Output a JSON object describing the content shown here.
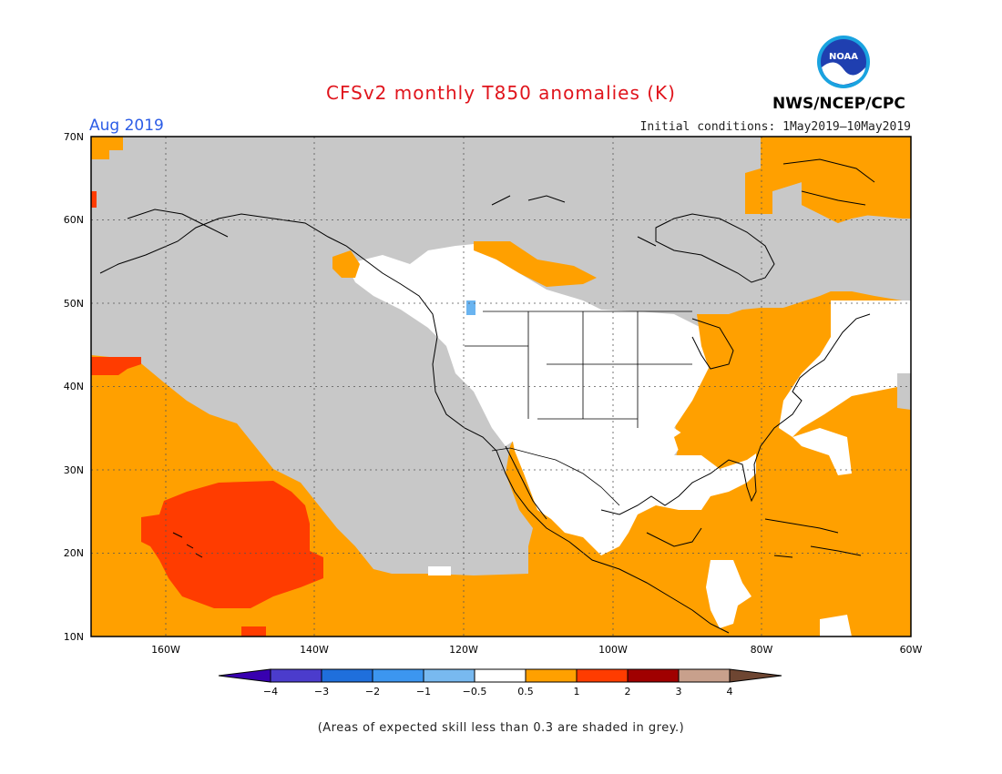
{
  "header": {
    "title": "CFSv2 monthly T850 anomalies (K)",
    "month": "Aug 2019",
    "initial_conditions": "Initial conditions: 1May2019–10May2019",
    "organization": "NWS/NCEP/CPC",
    "logo_text": "NOAA"
  },
  "map": {
    "projection": "lat-lon",
    "lon_range": [
      -170,
      -60
    ],
    "lat_range": [
      10,
      70
    ],
    "lat_labels": [
      "70N",
      "60N",
      "50N",
      "40N",
      "30N",
      "20N",
      "10N"
    ],
    "lon_labels": [
      "160W",
      "140W",
      "120W",
      "100W",
      "80W",
      "60W"
    ],
    "gridlines": "dotted",
    "colors": {
      "grey_low_skill": "#c8c8c8",
      "white_neutral": "#ffffff",
      "orange_0_5_to_1": "#ffa000",
      "red_1_to_2": "#ff3c00",
      "blue_minus_1_to_minus_0_5": "#6ab4f0"
    }
  },
  "colorbar": {
    "ticks": [
      "−4",
      "−3",
      "−2",
      "−1",
      "−0.5",
      "0.5",
      "1",
      "2",
      "3",
      "4"
    ],
    "colors": [
      "#3800b0",
      "#4b3ccc",
      "#1f6fdc",
      "#3c96f0",
      "#78b9f0",
      "#ffffff",
      "#ffa000",
      "#ff3c00",
      "#a00000",
      "#c8a08c",
      "#6e4632"
    ]
  },
  "footnote": "(Areas of expected skill less than 0.3 are shaded in grey.)"
}
